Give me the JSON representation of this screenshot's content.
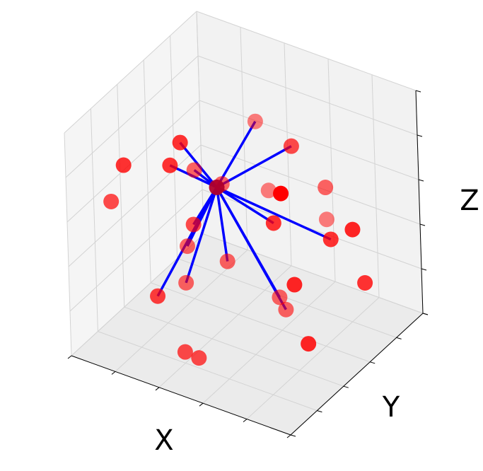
{
  "chart_data": {
    "type": "scatter",
    "projection": "3d",
    "xlabel": "X",
    "ylabel": "Y",
    "zlabel": "Z",
    "grid": true,
    "tick_labels": false,
    "marker_color": "#ff0000",
    "edge_color": "#0000ff",
    "hub": {
      "x": 0.35,
      "y": 0.55,
      "z": 0.58
    },
    "points": [
      {
        "x": 0.08,
        "y": 0.3,
        "z": 0.72,
        "alpha": 0.8,
        "connected": false
      },
      {
        "x": 0.25,
        "y": 0.45,
        "z": 0.8,
        "alpha": 0.8,
        "connected": true
      },
      {
        "x": 0.03,
        "y": 0.28,
        "z": 0.55,
        "alpha": 0.7,
        "connected": false
      },
      {
        "x": 0.2,
        "y": 0.45,
        "z": 0.68,
        "alpha": 0.8,
        "connected": true
      },
      {
        "x": 0.28,
        "y": 0.5,
        "z": 0.66,
        "alpha": 0.6,
        "connected": true
      },
      {
        "x": 0.38,
        "y": 0.8,
        "z": 0.75,
        "alpha": 0.5,
        "connected": true
      },
      {
        "x": 0.48,
        "y": 0.9,
        "z": 0.62,
        "alpha": 0.7,
        "connected": true
      },
      {
        "x": 0.5,
        "y": 0.78,
        "z": 0.48,
        "alpha": 1.0,
        "connected": false
      },
      {
        "x": 0.4,
        "y": 0.85,
        "z": 0.42,
        "alpha": 0.5,
        "connected": false
      },
      {
        "x": 0.6,
        "y": 0.95,
        "z": 0.45,
        "alpha": 0.6,
        "connected": false
      },
      {
        "x": 0.62,
        "y": 0.92,
        "z": 0.33,
        "alpha": 0.5,
        "connected": false
      },
      {
        "x": 0.3,
        "y": 0.45,
        "z": 0.45,
        "alpha": 0.7,
        "connected": true
      },
      {
        "x": 0.33,
        "y": 0.62,
        "z": 0.55,
        "alpha": 0.6,
        "connected": true
      },
      {
        "x": 0.3,
        "y": 0.4,
        "z": 0.38,
        "alpha": 0.6,
        "connected": true
      },
      {
        "x": 0.5,
        "y": 0.72,
        "z": 0.38,
        "alpha": 0.8,
        "connected": true
      },
      {
        "x": 0.42,
        "y": 0.5,
        "z": 0.3,
        "alpha": 0.6,
        "connected": true
      },
      {
        "x": 0.32,
        "y": 0.35,
        "z": 0.25,
        "alpha": 0.6,
        "connected": true
      },
      {
        "x": 0.25,
        "y": 0.25,
        "z": 0.22,
        "alpha": 0.75,
        "connected": true
      },
      {
        "x": 0.68,
        "y": 0.85,
        "z": 0.3,
        "alpha": 0.8,
        "connected": true
      },
      {
        "x": 0.7,
        "y": 0.98,
        "z": 0.28,
        "alpha": 0.85,
        "connected": false
      },
      {
        "x": 0.6,
        "y": 0.7,
        "z": 0.15,
        "alpha": 0.85,
        "connected": false
      },
      {
        "x": 0.58,
        "y": 0.62,
        "z": 0.13,
        "alpha": 0.6,
        "connected": true
      },
      {
        "x": 0.62,
        "y": 0.6,
        "z": 0.1,
        "alpha": 0.6,
        "connected": true
      },
      {
        "x": 0.8,
        "y": 0.9,
        "z": 0.12,
        "alpha": 0.8,
        "connected": false
      },
      {
        "x": 0.4,
        "y": 0.2,
        "z": 0.05,
        "alpha": 0.7,
        "connected": false
      },
      {
        "x": 0.45,
        "y": 0.22,
        "z": 0.03,
        "alpha": 0.7,
        "connected": false
      },
      {
        "x": 0.75,
        "y": 0.55,
        "z": 0.02,
        "alpha": 0.85,
        "connected": false
      }
    ]
  }
}
